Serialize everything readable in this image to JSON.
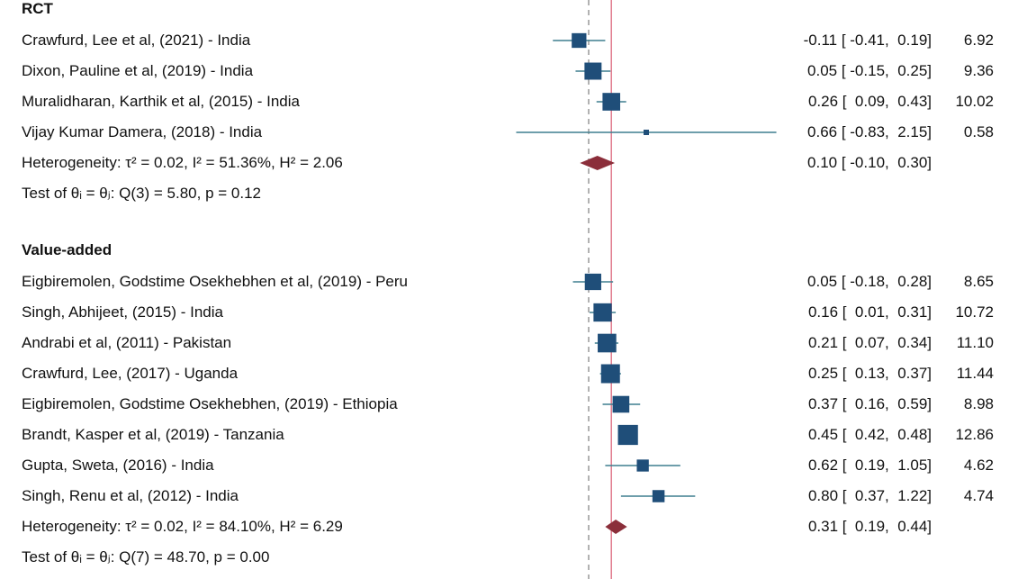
{
  "chart_data": {
    "type": "forest",
    "null_line": 0,
    "overall_line": 0.26,
    "x_domain": [
      -0.9,
      2.2
    ],
    "colors": {
      "marker": "#1f4e79",
      "ci": "#3f7f8f",
      "diamond": "#8b2e3a",
      "overall_line": "#e07a8c",
      "null_line": "#999999"
    },
    "groups": [
      {
        "label": "RCT",
        "studies": [
          {
            "name": "Crawfurd, Lee et al, (2021) - India",
            "es": -0.11,
            "lo": -0.41,
            "hi": 0.19,
            "ci_text": "-0.11 [ -0.41,  0.19]",
            "weight": "6.92"
          },
          {
            "name": "Dixon, Pauline et al, (2019) - India",
            "es": 0.05,
            "lo": -0.15,
            "hi": 0.25,
            "ci_text": "0.05 [ -0.15,  0.25]",
            "weight": "9.36"
          },
          {
            "name": "Muralidharan, Karthik et al, (2015) - India",
            "es": 0.26,
            "lo": 0.09,
            "hi": 0.43,
            "ci_text": "0.26 [  0.09,  0.43]",
            "weight": "10.02"
          },
          {
            "name": "Vijay Kumar Damera, (2018) - India",
            "es": 0.66,
            "lo": -0.83,
            "hi": 2.15,
            "ci_text": "0.66 [ -0.83,  2.15]",
            "weight": "0.58"
          }
        ],
        "summary": {
          "label": "Heterogeneity: τ² = 0.02, I² = 51.36%, H² = 2.06",
          "es": 0.1,
          "lo": -0.1,
          "hi": 0.3,
          "ci_text": "0.10 [ -0.10,  0.30]"
        },
        "test": "Test of θᵢ = θⱼ: Q(3) = 5.80, p = 0.12"
      },
      {
        "label": "Value-added",
        "studies": [
          {
            "name": "Eigbiremolen, Godstime Osekhebhen et al, (2019) - Peru",
            "es": 0.05,
            "lo": -0.18,
            "hi": 0.28,
            "ci_text": "0.05 [ -0.18,  0.28]",
            "weight": "8.65"
          },
          {
            "name": "Singh, Abhijeet, (2015) - India",
            "es": 0.16,
            "lo": 0.01,
            "hi": 0.31,
            "ci_text": "0.16 [  0.01,  0.31]",
            "weight": "10.72"
          },
          {
            "name": "Andrabi et al, (2011) - Pakistan",
            "es": 0.21,
            "lo": 0.07,
            "hi": 0.34,
            "ci_text": "0.21 [  0.07,  0.34]",
            "weight": "11.10"
          },
          {
            "name": "Crawfurd, Lee, (2017) - Uganda",
            "es": 0.25,
            "lo": 0.13,
            "hi": 0.37,
            "ci_text": "0.25 [  0.13,  0.37]",
            "weight": "11.44"
          },
          {
            "name": "Eigbiremolen, Godstime Osekhebhen, (2019) - Ethiopia",
            "es": 0.37,
            "lo": 0.16,
            "hi": 0.59,
            "ci_text": "0.37 [  0.16,  0.59]",
            "weight": "8.98"
          },
          {
            "name": "Brandt, Kasper et al, (2019) - Tanzania",
            "es": 0.45,
            "lo": 0.42,
            "hi": 0.48,
            "ci_text": "0.45 [  0.42,  0.48]",
            "weight": "12.86"
          },
          {
            "name": "Gupta, Sweta, (2016) - India",
            "es": 0.62,
            "lo": 0.19,
            "hi": 1.05,
            "ci_text": "0.62 [  0.19,  1.05]",
            "weight": "4.62"
          },
          {
            "name": "Singh, Renu et al, (2012) - India",
            "es": 0.8,
            "lo": 0.37,
            "hi": 1.22,
            "ci_text": "0.80 [  0.37,  1.22]",
            "weight": "4.74"
          }
        ],
        "summary": {
          "label": "Heterogeneity: τ² = 0.02, I² = 84.10%, H² = 6.29",
          "es": 0.31,
          "lo": 0.19,
          "hi": 0.44,
          "ci_text": "0.31 [  0.19,  0.44]"
        },
        "test": "Test of θᵢ = θⱼ: Q(7) = 48.70, p = 0.00"
      }
    ]
  }
}
